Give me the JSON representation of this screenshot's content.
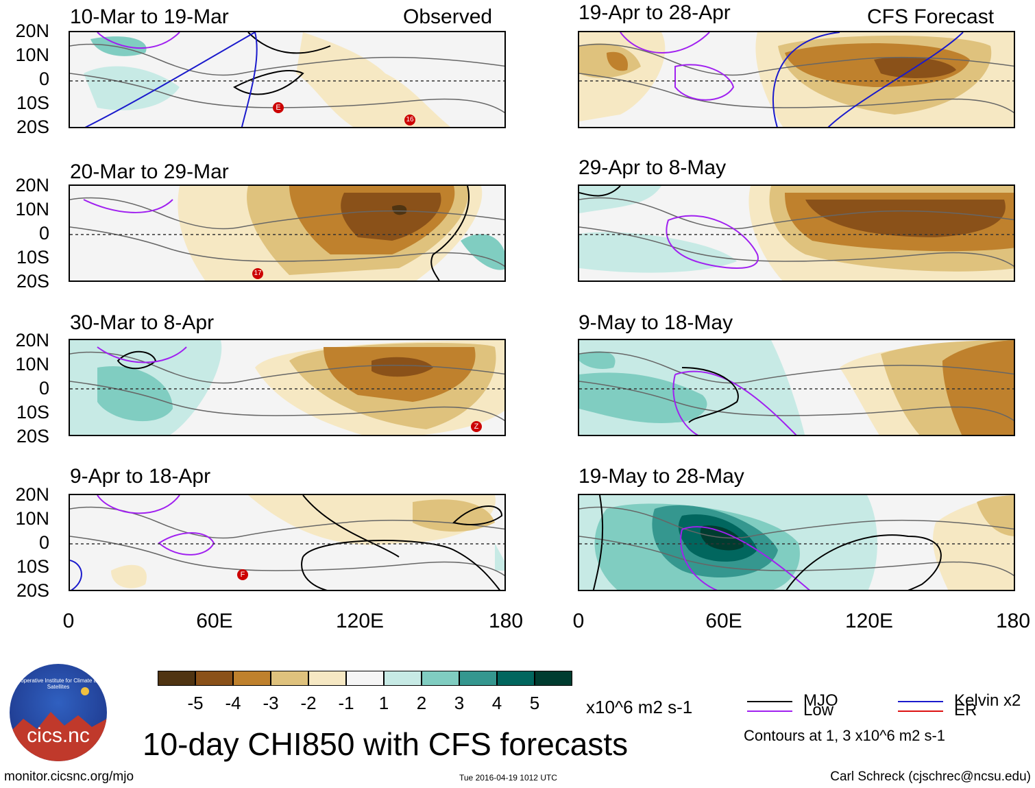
{
  "header": {
    "left_label": "Observed",
    "right_label": "CFS Forecast"
  },
  "lat_labels": [
    "20N",
    "10N",
    "0",
    "10S",
    "20S"
  ],
  "lon_labels": [
    "0",
    "60E",
    "120E",
    "180"
  ],
  "left_panels": [
    {
      "title": "10-Mar to 19-Mar"
    },
    {
      "title": "20-Mar to 29-Mar"
    },
    {
      "title": "30-Mar to 8-Apr"
    },
    {
      "title": "9-Apr to 18-Apr"
    }
  ],
  "right_panels": [
    {
      "title": "19-Apr to 28-Apr"
    },
    {
      "title": "29-Apr to 8-May"
    },
    {
      "title": "9-May to 18-May"
    },
    {
      "title": "19-May to 28-May"
    }
  ],
  "storm_markers": [
    "E",
    "16",
    "17",
    "Z",
    "F"
  ],
  "colorbar": {
    "ticks": [
      "-5",
      "-4",
      "-3",
      "-2",
      "-1",
      "1",
      "2",
      "3",
      "4",
      "5"
    ],
    "units": "x10^6 m2 s-1",
    "colors": [
      "#4f3412",
      "#8a5119",
      "#bf812d",
      "#dfc27d",
      "#f6e8c3",
      "#f5f5f5",
      "#c7eae5",
      "#80cdc1",
      "#35978f",
      "#01665e",
      "#003c30"
    ]
  },
  "legend": {
    "mjo": "MJO",
    "kelvin": "Kelvin x2",
    "low": "Low",
    "er": "ER",
    "note": "Contours at 1, 3 x10^6 m2 s-1",
    "colors": {
      "mjo": "#000000",
      "kelvin": "#1a1acc",
      "low": "#a020f0",
      "er": "#dd1111"
    }
  },
  "footer": {
    "title": "10-day CHI850 with CFS forecasts",
    "url": "monitor.cicsnc.org/mjo",
    "timestamp": "Tue 2016-04-19 1012 UTC",
    "author": "Carl Schreck (cjschrec@ncsu.edu)",
    "logo_text": "cics.nc",
    "logo_ring_text": "Cooperative Institute for Climate and Satellites"
  }
}
